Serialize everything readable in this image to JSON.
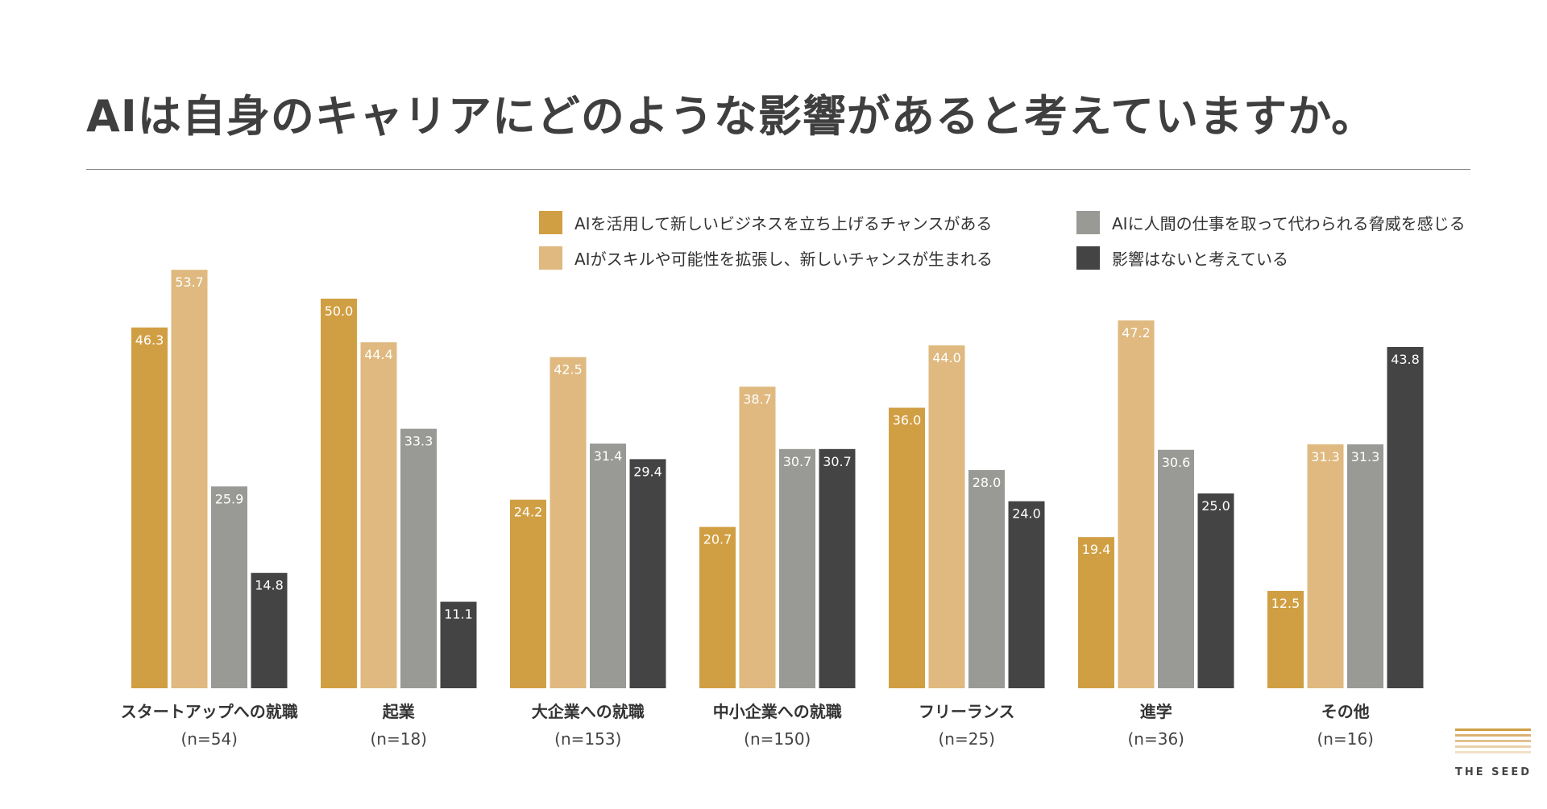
{
  "title": "AIは自身のキャリアにどのような影響があると考えていますか。",
  "chart_data": {
    "type": "bar",
    "title": "AIは自身のキャリアにどのような影響があると考えていますか。",
    "categories": [
      "スタートアップへの就職",
      "起業",
      "大企業への就職",
      "中小企業への就職",
      "フリーランス",
      "進学",
      "その他"
    ],
    "sample_sizes": [
      "(n=54)",
      "(n=18)",
      "(n=153)",
      "(n=150)",
      "(n=25)",
      "(n=36)",
      "(n=16)"
    ],
    "series": [
      {
        "name": "AIを活用して新しいビジネスを立ち上げるチャンスがある",
        "color": "#d19f43",
        "values": [
          46.3,
          50.0,
          24.2,
          20.7,
          36.0,
          19.4,
          12.5
        ]
      },
      {
        "name": "AIがスキルや可能性を拡張し、新しいチャンスが生まれる",
        "color": "#dfb97f",
        "values": [
          53.7,
          44.4,
          42.5,
          38.7,
          44.0,
          47.2,
          31.3
        ]
      },
      {
        "name": "AIに人間の仕事を取って代わられる脅威を感じる",
        "color": "#999a95",
        "values": [
          25.9,
          33.3,
          31.4,
          30.7,
          28.0,
          30.6,
          31.3
        ]
      },
      {
        "name": "影響はないと考えている",
        "color": "#444444",
        "values": [
          14.8,
          11.1,
          29.4,
          30.7,
          24.0,
          25.0,
          43.8
        ]
      }
    ],
    "ylim": [
      0,
      60
    ],
    "grid": false,
    "legend": "top-right",
    "xlabel": "",
    "ylabel": ""
  },
  "logo": {
    "text": "THE SEED",
    "colors": [
      "#d19f43",
      "#dcb071",
      "#e3c08f",
      "#ead0ab",
      "#f1e0c8"
    ]
  }
}
